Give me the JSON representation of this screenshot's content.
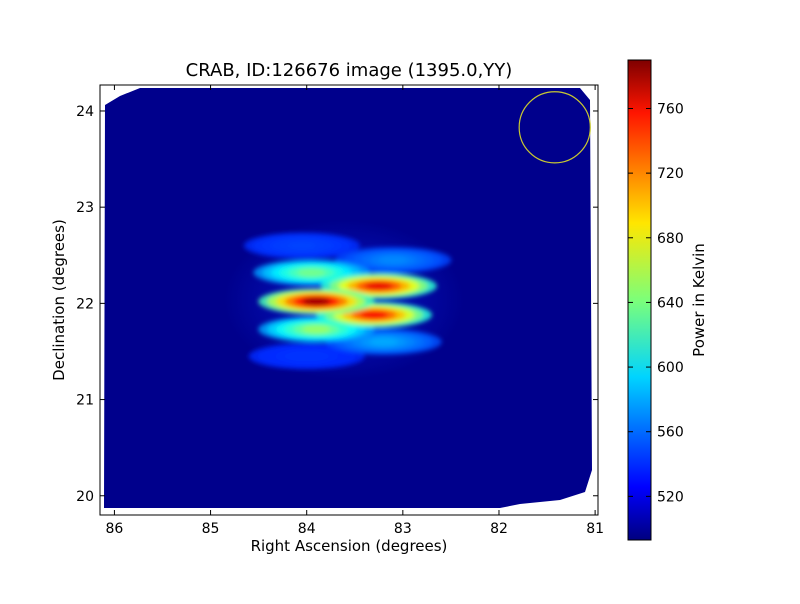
{
  "chart_data": {
    "type": "heatmap",
    "title": "CRAB, ID:126676 image (1395.0,YY)",
    "xlabel": "Right Ascension (degrees)",
    "ylabel": "Declination (degrees)",
    "x_ticks": [
      "86",
      "85",
      "84",
      "83",
      "82",
      "81"
    ],
    "x_tick_values": [
      86,
      85,
      84,
      83,
      82,
      81
    ],
    "y_ticks": [
      "20",
      "21",
      "22",
      "23",
      "24"
    ],
    "y_tick_values": [
      20,
      21,
      22,
      23,
      24
    ],
    "xlim": [
      86.15,
      80.97
    ],
    "ylim": [
      19.8,
      24.27
    ],
    "colorbar": {
      "label": "Power in Kelvin",
      "ticks": [
        "520",
        "560",
        "600",
        "640",
        "680",
        "720",
        "760"
      ],
      "tick_values": [
        520,
        560,
        600,
        640,
        680,
        720,
        760
      ],
      "range": [
        493,
        790
      ],
      "colormap": "jet"
    },
    "background_level": 500,
    "blobs": [
      {
        "ra": 83.9,
        "dec": 22.02,
        "peak": 785
      },
      {
        "ra": 83.25,
        "dec": 22.18,
        "peak": 760
      },
      {
        "ra": 83.3,
        "dec": 21.88,
        "peak": 755
      },
      {
        "ra": 83.95,
        "dec": 22.32,
        "peak": 640
      },
      {
        "ra": 83.9,
        "dec": 21.73,
        "peak": 650
      },
      {
        "ra": 83.1,
        "dec": 22.45,
        "peak": 570
      },
      {
        "ra": 83.2,
        "dec": 21.6,
        "peak": 580
      },
      {
        "ra": 84.05,
        "dec": 22.6,
        "peak": 550
      },
      {
        "ra": 84.0,
        "dec": 21.45,
        "peak": 545
      }
    ],
    "beam_circle": {
      "ra": 81.42,
      "dec": 23.83,
      "radius_deg": 0.37,
      "color": "#c8c832"
    }
  }
}
